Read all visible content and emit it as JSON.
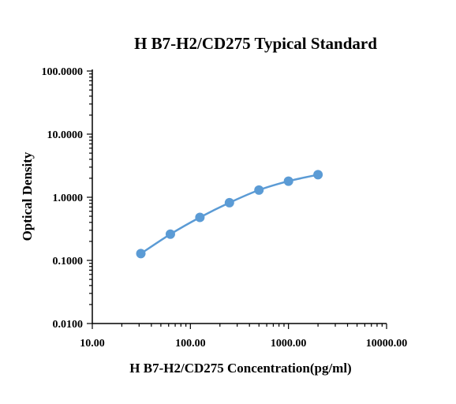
{
  "chart_data": {
    "type": "line",
    "title": "H B7-H2/CD275 Typical Standard",
    "xlabel": "H B7-H2/CD275 Concentration(pg/ml)",
    "ylabel": "Optical Density",
    "x_scale": "log",
    "y_scale": "log",
    "xlim": [
      10,
      10000
    ],
    "ylim": [
      0.01,
      100
    ],
    "x_ticks": [
      10,
      100,
      1000,
      10000
    ],
    "x_tick_labels": [
      "10.00",
      "100.00",
      "1000.00",
      "10000.00"
    ],
    "y_ticks": [
      0.01,
      0.1,
      1,
      10,
      100
    ],
    "y_tick_labels": [
      "0.0100",
      "0.1000",
      "1.0000",
      "10.0000",
      "100.0000"
    ],
    "grid": false,
    "series": [
      {
        "x": [
          31.25,
          62.5,
          125,
          250,
          500,
          1000,
          2000
        ],
        "y": [
          0.128,
          0.26,
          0.48,
          0.82,
          1.3,
          1.8,
          2.28
        ]
      }
    ],
    "colors": {
      "series": "#5b9bd5",
      "axis": "#000000"
    }
  }
}
